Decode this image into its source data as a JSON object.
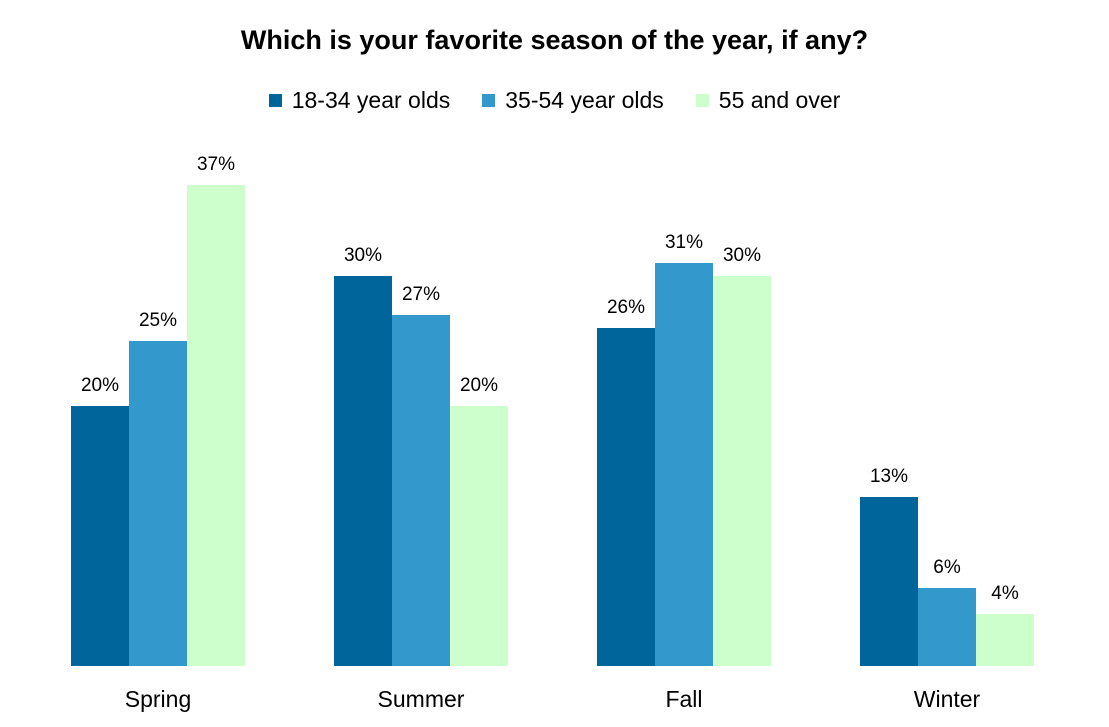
{
  "chart_data": {
    "type": "bar",
    "title": "Which is your favorite season of the year, if any?",
    "categories": [
      "Spring",
      "Summer",
      "Fall",
      "Winter"
    ],
    "series": [
      {
        "name": "18-34 year olds",
        "color": "#00659a",
        "values": [
          20,
          30,
          26,
          13
        ],
        "labels": [
          "20%",
          "30%",
          "26%",
          "13%"
        ]
      },
      {
        "name": "35-54 year olds",
        "color": "#3399cc",
        "values": [
          25,
          27,
          31,
          6
        ],
        "labels": [
          "25%",
          "27%",
          "31%",
          "6%"
        ]
      },
      {
        "name": "55 and over",
        "color": "#ccffcc",
        "values": [
          37,
          20,
          30,
          4
        ],
        "labels": [
          "37%",
          "20%",
          "30%",
          "4%"
        ]
      }
    ],
    "xlabel": "",
    "ylabel": "",
    "ylim": [
      0,
      37
    ],
    "grid": false,
    "legend_position": "top-center"
  }
}
